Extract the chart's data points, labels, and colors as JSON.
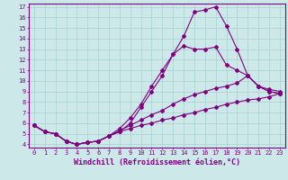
{
  "xlabel": "Windchill (Refroidissement éolien,°C)",
  "background_color": "#cce8e8",
  "line_color": "#800080",
  "grid_color": "#a8d0d0",
  "xlim": [
    -0.5,
    23.5
  ],
  "ylim": [
    3.7,
    17.3
  ],
  "xticks": [
    0,
    1,
    2,
    3,
    4,
    5,
    6,
    7,
    8,
    9,
    10,
    11,
    12,
    13,
    14,
    15,
    16,
    17,
    18,
    19,
    20,
    21,
    22,
    23
  ],
  "yticks": [
    4,
    5,
    6,
    7,
    8,
    9,
    10,
    11,
    12,
    13,
    14,
    15,
    16,
    17
  ],
  "lines": [
    {
      "x": [
        0,
        1,
        2,
        3,
        4,
        5,
        6,
        7,
        8,
        9,
        10,
        11,
        12,
        13,
        14,
        15,
        16,
        17,
        18,
        19,
        20,
        21,
        22,
        23
      ],
      "y": [
        5.8,
        5.2,
        5.0,
        4.3,
        4.0,
        4.2,
        4.3,
        4.8,
        5.2,
        6.0,
        7.5,
        9.0,
        10.5,
        12.5,
        14.2,
        16.5,
        16.7,
        17.0,
        15.2,
        13.0,
        10.5,
        9.5,
        9.0,
        8.8
      ]
    },
    {
      "x": [
        0,
        1,
        2,
        3,
        4,
        5,
        6,
        7,
        8,
        9,
        10,
        11,
        12,
        13,
        14,
        15,
        16,
        17,
        18,
        19,
        20,
        21,
        22,
        23
      ],
      "y": [
        5.8,
        5.2,
        5.0,
        4.3,
        4.0,
        4.2,
        4.3,
        4.8,
        5.5,
        6.5,
        7.8,
        9.5,
        11.0,
        12.5,
        13.3,
        13.0,
        13.0,
        13.2,
        11.5,
        11.0,
        10.5,
        9.5,
        9.0,
        8.8
      ]
    },
    {
      "x": [
        0,
        1,
        2,
        3,
        4,
        5,
        6,
        7,
        8,
        9,
        10,
        11,
        12,
        13,
        14,
        15,
        16,
        17,
        18,
        19,
        20,
        21,
        22,
        23
      ],
      "y": [
        5.8,
        5.2,
        5.0,
        4.3,
        4.0,
        4.2,
        4.3,
        4.8,
        5.3,
        5.8,
        6.3,
        6.8,
        7.2,
        7.8,
        8.3,
        8.7,
        9.0,
        9.3,
        9.5,
        9.8,
        10.5,
        9.5,
        9.2,
        9.0
      ]
    },
    {
      "x": [
        0,
        1,
        2,
        3,
        4,
        5,
        6,
        7,
        8,
        9,
        10,
        11,
        12,
        13,
        14,
        15,
        16,
        17,
        18,
        19,
        20,
        21,
        22,
        23
      ],
      "y": [
        5.8,
        5.2,
        5.0,
        4.3,
        4.0,
        4.2,
        4.3,
        4.8,
        5.2,
        5.5,
        5.8,
        6.0,
        6.3,
        6.5,
        6.8,
        7.0,
        7.3,
        7.5,
        7.8,
        8.0,
        8.2,
        8.3,
        8.5,
        8.8
      ]
    }
  ],
  "marker": "D",
  "markersize": 2.0,
  "linewidth": 0.8,
  "tick_fontsize": 5.0,
  "label_fontsize": 6.0
}
